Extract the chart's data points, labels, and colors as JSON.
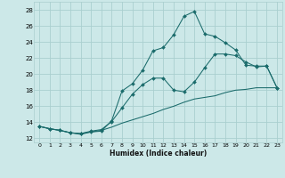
{
  "xlabel": "Humidex (Indice chaleur)",
  "bg_color": "#cce8e8",
  "line_color": "#1a6b6b",
  "grid_color": "#aacfcf",
  "xlim": [
    -0.5,
    23.5
  ],
  "ylim": [
    11.5,
    29.0
  ],
  "xticks": [
    0,
    1,
    2,
    3,
    4,
    5,
    6,
    7,
    8,
    9,
    10,
    11,
    12,
    13,
    14,
    15,
    16,
    17,
    18,
    19,
    20,
    21,
    22,
    23
  ],
  "yticks": [
    12,
    14,
    16,
    18,
    20,
    22,
    24,
    26,
    28
  ],
  "line1_x": [
    0,
    1,
    2,
    3,
    4,
    5,
    6,
    7,
    8,
    9,
    10,
    11,
    12,
    13,
    14,
    15,
    16,
    17,
    18,
    19,
    20,
    21,
    22,
    23
  ],
  "line1_y": [
    13.5,
    13.2,
    13.0,
    12.7,
    12.6,
    12.8,
    12.9,
    14.2,
    17.9,
    18.8,
    20.5,
    22.9,
    23.3,
    24.9,
    27.2,
    27.8,
    25.0,
    24.7,
    23.9,
    23.0,
    21.1,
    21.0,
    21.0,
    18.3
  ],
  "line2_x": [
    0,
    1,
    2,
    3,
    4,
    5,
    6,
    7,
    8,
    9,
    10,
    11,
    12,
    13,
    14,
    15,
    16,
    17,
    18,
    19,
    20,
    21,
    22,
    23
  ],
  "line2_y": [
    13.5,
    13.2,
    13.0,
    12.7,
    12.6,
    12.9,
    13.1,
    14.1,
    15.8,
    17.5,
    18.7,
    19.5,
    19.5,
    18.0,
    17.8,
    19.0,
    20.8,
    22.5,
    22.5,
    22.3,
    21.5,
    20.9,
    21.0,
    18.3
  ],
  "line3_x": [
    0,
    1,
    2,
    3,
    4,
    5,
    6,
    7,
    8,
    9,
    10,
    11,
    12,
    13,
    14,
    15,
    16,
    17,
    18,
    19,
    20,
    21,
    22,
    23
  ],
  "line3_y": [
    13.5,
    13.2,
    13.0,
    12.7,
    12.5,
    12.8,
    13.0,
    13.4,
    13.9,
    14.3,
    14.7,
    15.1,
    15.6,
    16.0,
    16.5,
    16.9,
    17.1,
    17.3,
    17.7,
    18.0,
    18.1,
    18.3,
    18.3,
    18.3
  ]
}
